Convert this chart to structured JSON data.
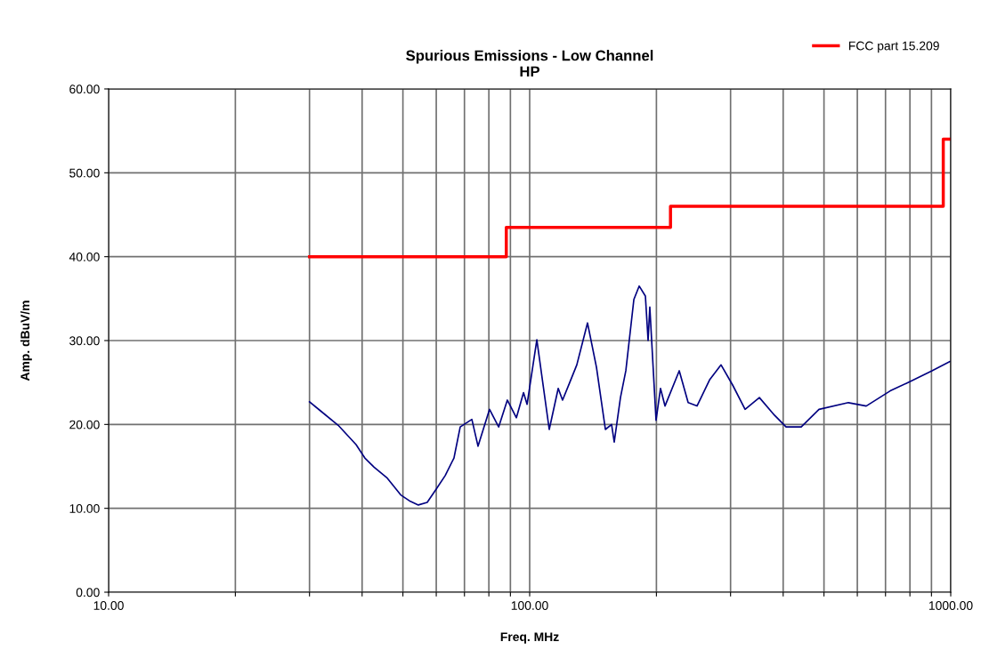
{
  "chart_data": {
    "type": "line",
    "title": "Spurious Emissions - Low Channel\nHP",
    "xlabel": "Freq. MHz",
    "ylabel": "Amp. dBuV/m",
    "log": "x",
    "xlim": [
      10,
      1000
    ],
    "ylim": [
      0,
      60
    ],
    "xticks": [
      {
        "value": 10,
        "label": "10.00"
      },
      {
        "value": 20,
        "label": null
      },
      {
        "value": 30,
        "label": null
      },
      {
        "value": 40,
        "label": null
      },
      {
        "value": 50,
        "label": null
      },
      {
        "value": 60,
        "label": null
      },
      {
        "value": 70,
        "label": null
      },
      {
        "value": 80,
        "label": null
      },
      {
        "value": 90,
        "label": null
      },
      {
        "value": 100,
        "label": "100.00"
      },
      {
        "value": 200,
        "label": null
      },
      {
        "value": 300,
        "label": null
      },
      {
        "value": 400,
        "label": null
      },
      {
        "value": 500,
        "label": null
      },
      {
        "value": 600,
        "label": null
      },
      {
        "value": 700,
        "label": null
      },
      {
        "value": 800,
        "label": null
      },
      {
        "value": 900,
        "label": null
      },
      {
        "value": 1000,
        "label": "1000.00"
      }
    ],
    "yticks": [
      {
        "value": 0,
        "label": "0.00"
      },
      {
        "value": 10,
        "label": "10.00"
      },
      {
        "value": 20,
        "label": "20.00"
      },
      {
        "value": 30,
        "label": "30.00"
      },
      {
        "value": 40,
        "label": "40.00"
      },
      {
        "value": 50,
        "label": "50.00"
      },
      {
        "value": 60,
        "label": "60.00"
      }
    ],
    "grid": true,
    "legend": "top right",
    "series": [
      {
        "color": "#000080",
        "x": [
          30.0,
          31.9,
          35.1,
          38.7,
          40.6,
          42.7,
          45.9,
          49.4,
          51.8,
          54.4,
          57.1,
          60.0,
          63.0,
          66.1,
          68.4,
          72.9,
          75.4,
          80.3,
          84.4,
          88.5,
          93.0,
          96.7,
          98.6,
          104.0,
          111.3,
          116.9,
          119.7,
          124.5,
          129.4,
          137.2,
          144.1,
          151.3,
          156.5,
          158.8,
          164.3,
          169.2,
          176.8,
          182.0,
          188.3,
          191.1,
          192.9,
          199.6,
          204.5,
          209.6,
          226.6,
          237.9,
          249.7,
          267.4,
          284.8,
          303.4,
          324.8,
          351.2,
          381.4,
          406.4,
          441.5,
          486.6,
          571.4,
          630.0,
          718.2,
          791.6,
          902.7,
          995.0
        ],
        "values": [
          22.7,
          21.6,
          19.9,
          17.6,
          16.0,
          14.9,
          13.6,
          11.6,
          10.9,
          10.4,
          10.7,
          12.3,
          13.9,
          16.0,
          19.7,
          20.6,
          17.4,
          21.8,
          19.7,
          22.9,
          20.8,
          23.8,
          22.4,
          30.1,
          19.4,
          24.3,
          22.9,
          25.0,
          27.1,
          32.1,
          26.8,
          19.4,
          20.0,
          17.9,
          23.2,
          26.4,
          34.9,
          36.5,
          35.3,
          30.0,
          34.0,
          20.5,
          24.3,
          22.2,
          26.4,
          22.6,
          22.2,
          25.3,
          27.1,
          24.7,
          21.8,
          23.2,
          21.1,
          19.7,
          19.7,
          21.8,
          22.6,
          22.2,
          24.0,
          25.0,
          26.4,
          27.5
        ]
      },
      {
        "type": "step",
        "name": "FCC part 15.209",
        "color": "#ff0000",
        "x": [
          30,
          88,
          216,
          960,
          1000
        ],
        "values": [
          40,
          43.5,
          46,
          54,
          54
        ]
      }
    ]
  }
}
